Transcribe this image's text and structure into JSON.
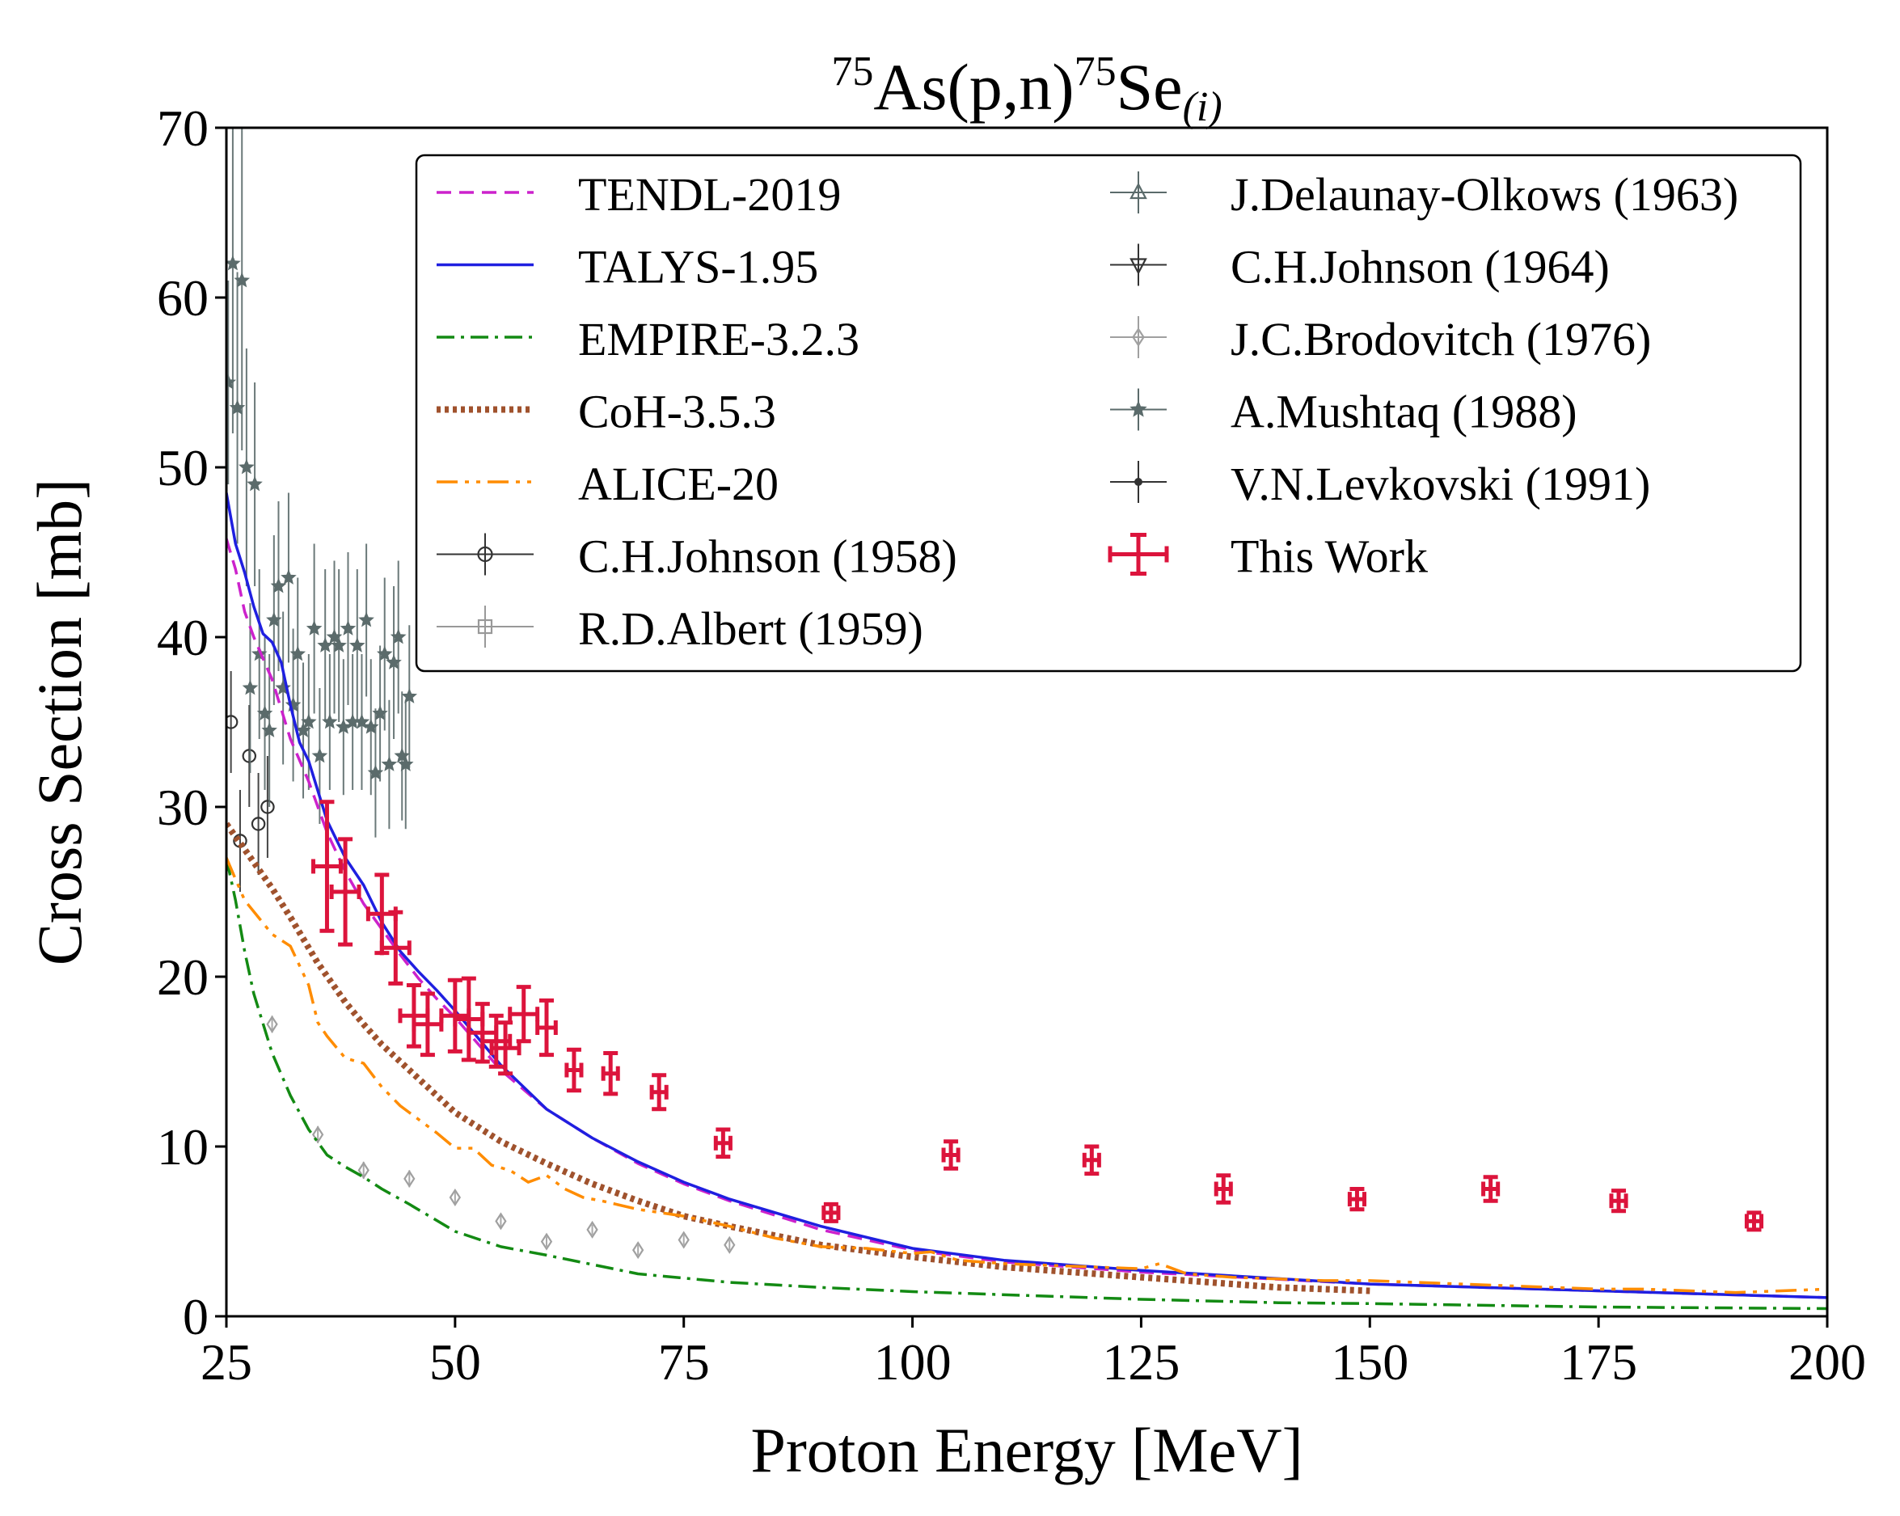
{
  "chart_data": {
    "type": "scatter",
    "title": {
      "sup1": "75",
      "mid1": "As(p,n)",
      "sup2": "75",
      "mid2": "Se",
      "sub": "(i)"
    },
    "xlabel": "Proton Energy [MeV]",
    "ylabel": "Cross Section [mb]",
    "xlim": [
      25,
      200
    ],
    "ylim": [
      0,
      70
    ],
    "xticks": [
      25,
      50,
      75,
      100,
      125,
      150,
      175,
      200
    ],
    "yticks": [
      0,
      10,
      20,
      30,
      40,
      50,
      60,
      70
    ],
    "legend_position": "top-right",
    "model_curves": [
      {
        "name": "TENDL-2019",
        "color": "#cc22cc",
        "dash": "dashed",
        "x": [
          25,
          26,
          27,
          28,
          30,
          32,
          34,
          36,
          38,
          40,
          42,
          44,
          46,
          48,
          50,
          55,
          60,
          65,
          70,
          75,
          80,
          90,
          100,
          110,
          125,
          150,
          175,
          200
        ],
        "y": [
          45.8,
          44,
          41.5,
          40,
          37.5,
          34,
          31.5,
          28.5,
          26.2,
          24.3,
          22.8,
          21.3,
          19.9,
          18.7,
          17.6,
          14.5,
          12.2,
          10.5,
          9,
          7.8,
          6.8,
          5.1,
          3.9,
          3.2,
          2.6,
          1.9,
          1.5,
          1.1
        ]
      },
      {
        "name": "TALYS-1.95",
        "color": "#1f1fe0",
        "dash": "solid",
        "x": [
          25,
          26,
          27,
          28,
          29,
          30,
          31,
          32,
          33,
          34,
          36,
          38,
          40,
          42,
          44,
          46,
          48,
          50,
          55,
          60,
          65,
          70,
          75,
          80,
          90,
          100,
          110,
          125,
          150,
          175,
          200
        ],
        "y": [
          48.5,
          45.5,
          43.8,
          41.8,
          40.2,
          39.7,
          38.5,
          36,
          33.8,
          32.7,
          29.2,
          27,
          25.4,
          23.2,
          21.5,
          20.3,
          19.2,
          18,
          14.8,
          12.2,
          10.5,
          9.1,
          7.9,
          6.9,
          5.3,
          4.0,
          3.3,
          2.7,
          1.9,
          1.5,
          1.1
        ]
      },
      {
        "name": "EMPIRE-3.2.3",
        "color": "#138a13",
        "dash": "dashdot",
        "x": [
          25,
          26,
          27,
          28,
          30,
          32,
          34,
          36,
          38,
          40,
          42,
          45,
          50,
          55,
          60,
          70,
          80,
          90,
          100,
          125,
          140,
          150,
          175,
          200
        ],
        "y": [
          27,
          24.5,
          21.5,
          19,
          15.5,
          13,
          11,
          9.5,
          8.8,
          8.2,
          7.5,
          6.6,
          5,
          4.1,
          3.6,
          2.5,
          2.0,
          1.7,
          1.45,
          1.0,
          0.8,
          0.75,
          0.55,
          0.45
        ]
      },
      {
        "name": "CoH-3.5.3",
        "color": "#a0522d",
        "dash": "dotted",
        "x": [
          25,
          27,
          30,
          32,
          35,
          38,
          40,
          42,
          45,
          48,
          50,
          55,
          60,
          65,
          70,
          75,
          80,
          90,
          100,
          110,
          125,
          140,
          150
        ],
        "y": [
          29,
          27.5,
          25.2,
          23.5,
          20.8,
          18.5,
          17.2,
          16,
          14.5,
          13,
          12,
          10.3,
          9,
          7.8,
          6.8,
          5.9,
          5.3,
          4.2,
          3.5,
          2.9,
          2.3,
          1.7,
          1.5
        ]
      },
      {
        "name": "ALICE-20",
        "color": "#ff8c00",
        "dash": "dashdotdot",
        "x": [
          25,
          27,
          30,
          32,
          34,
          35,
          36,
          38,
          40,
          42,
          44,
          46,
          48,
          50,
          52,
          54,
          56,
          58,
          60,
          62,
          64,
          66,
          70,
          75,
          80,
          85,
          90,
          95,
          100,
          102,
          105,
          110,
          115,
          120,
          125,
          127,
          130,
          135,
          140,
          145,
          150,
          155,
          160,
          165,
          170,
          175,
          180,
          185,
          190,
          195,
          200
        ],
        "y": [
          27,
          24.5,
          22.5,
          21.8,
          19.5,
          17.3,
          16.5,
          15.2,
          14.9,
          13.5,
          12.4,
          11.6,
          10.8,
          9.9,
          9.9,
          8.9,
          8.6,
          7.9,
          8.3,
          7.5,
          7,
          6.8,
          6.3,
          5.9,
          5.3,
          4.6,
          4.1,
          4.0,
          3.7,
          3.8,
          3.3,
          3.1,
          3.0,
          2.9,
          2.8,
          3.1,
          2.5,
          2.3,
          2.2,
          2.1,
          2.1,
          2.0,
          1.9,
          1.8,
          1.7,
          1.6,
          1.6,
          1.5,
          1.4,
          1.5,
          1.6
        ]
      }
    ],
    "experimental": [
      {
        "name": "C.H.Johnson (1958)",
        "color": "#333333",
        "marker": "circle",
        "x": [
          25.5,
          26.5,
          27.5,
          28.5,
          29.5
        ],
        "y": [
          35,
          28,
          33,
          29,
          30
        ],
        "yerr": [
          3,
          3,
          3,
          3,
          3
        ]
      },
      {
        "name": "R.D.Albert (1959)",
        "color": "#999999",
        "marker": "square",
        "x": [],
        "y": [],
        "yerr": []
      },
      {
        "name": "J.Delaunay-Olkows (1963)",
        "color": "#5b6b6b",
        "marker": "triangle-up",
        "x": [],
        "y": [],
        "yerr": []
      },
      {
        "name": "C.H.Johnson (1964)",
        "color": "#333333",
        "marker": "triangle-down",
        "x": [],
        "y": [],
        "yerr": []
      },
      {
        "name": "J.C.Brodovitch (1976)",
        "color": "#a0a0a0",
        "marker": "diamond",
        "x": [
          30,
          35,
          40,
          45,
          50,
          55,
          60,
          65,
          70,
          75,
          80
        ],
        "y": [
          17.2,
          10.7,
          8.6,
          8.1,
          7.0,
          5.6,
          4.4,
          5.1,
          3.9,
          4.5,
          4.2
        ],
        "yerr": [
          0.5,
          0.5,
          0.5,
          0.5,
          0.4,
          0.4,
          0.3,
          0.3,
          0.3,
          0.3,
          0.3
        ]
      },
      {
        "name": "A.Mushtaq (1988)",
        "color": "#5b6b6b",
        "marker": "star",
        "x": [
          25.2,
          25.7,
          26.2,
          26.7,
          27.2,
          27.6,
          28.1,
          28.6,
          29.2,
          29.7,
          30.2,
          30.7,
          31.2,
          31.8,
          32.3,
          32.8,
          33.4,
          34.0,
          34.6,
          35.2,
          35.8,
          36.3,
          36.8,
          37.3,
          37.8,
          38.3,
          38.8,
          39.3,
          39.8,
          40.3,
          40.8,
          41.3,
          41.8,
          42.3,
          42.8,
          43.3,
          43.8,
          44.2,
          44.6,
          45.0
        ],
        "y": [
          55,
          62,
          53.5,
          61,
          50,
          37,
          49,
          39,
          35.5,
          34.5,
          41,
          43,
          37,
          43.5,
          36,
          39,
          34.5,
          35,
          40.5,
          33,
          39.5,
          35,
          40,
          39.5,
          34.7,
          40.5,
          35,
          39.5,
          35,
          41,
          34.7,
          32,
          35.5,
          39,
          32.5,
          38.5,
          40,
          33,
          32.5,
          36.5
        ],
        "yerr": [
          6,
          10,
          8,
          10,
          7,
          5,
          6,
          5,
          4.5,
          4.5,
          5,
          5,
          4.5,
          5,
          4.5,
          4.5,
          4,
          4,
          5,
          4,
          4.5,
          4,
          4.5,
          4.5,
          4,
          4.5,
          4,
          4.5,
          4,
          4.5,
          4,
          3.8,
          4,
          4.5,
          3.8,
          4.5,
          4.5,
          3.8,
          3.8,
          4.2
        ]
      },
      {
        "name": "V.N.Levkovski (1991)",
        "color": "#333333",
        "marker": "point",
        "x": [],
        "y": [],
        "yerr": []
      }
    ],
    "this_work": {
      "name": "This Work",
      "color": "#dc143c",
      "points": [
        {
          "x": 36,
          "y": 26.5,
          "xerr": 1.5,
          "yerr": 3.8
        },
        {
          "x": 38,
          "y": 25,
          "xerr": 1.5,
          "yerr": 3.1
        },
        {
          "x": 42,
          "y": 23.7,
          "xerr": 1.5,
          "yerr": 2.3
        },
        {
          "x": 43.5,
          "y": 21.7,
          "xerr": 1.5,
          "yerr": 2.1
        },
        {
          "x": 45.5,
          "y": 17.7,
          "xerr": 1.5,
          "yerr": 1.8
        },
        {
          "x": 47,
          "y": 17.2,
          "xerr": 1.5,
          "yerr": 1.8
        },
        {
          "x": 50,
          "y": 17.7,
          "xerr": 1.5,
          "yerr": 2.1
        },
        {
          "x": 51.5,
          "y": 17.5,
          "xerr": 1.5,
          "yerr": 2.4
        },
        {
          "x": 53,
          "y": 16.7,
          "xerr": 1.5,
          "yerr": 1.7
        },
        {
          "x": 54.5,
          "y": 16.2,
          "xerr": 1.5,
          "yerr": 1.5
        },
        {
          "x": 55.5,
          "y": 15.8,
          "xerr": 1.5,
          "yerr": 1.5
        },
        {
          "x": 57.5,
          "y": 17.8,
          "xerr": 1.5,
          "yerr": 1.6
        },
        {
          "x": 60,
          "y": 17,
          "xerr": 1.0,
          "yerr": 1.6
        },
        {
          "x": 63,
          "y": 14.5,
          "xerr": 0.8,
          "yerr": 1.2
        },
        {
          "x": 67,
          "y": 14.3,
          "xerr": 0.8,
          "yerr": 1.2
        },
        {
          "x": 72.3,
          "y": 13.2,
          "xerr": 0.8,
          "yerr": 1.0
        },
        {
          "x": 79.3,
          "y": 10.2,
          "xerr": 0.8,
          "yerr": 0.8
        },
        {
          "x": 91.1,
          "y": 6.1,
          "xerr": 0.8,
          "yerr": 0.5
        },
        {
          "x": 104.2,
          "y": 9.5,
          "xerr": 0.8,
          "yerr": 0.8
        },
        {
          "x": 119.6,
          "y": 9.2,
          "xerr": 0.8,
          "yerr": 0.8
        },
        {
          "x": 134,
          "y": 7.5,
          "xerr": 0.8,
          "yerr": 0.8
        },
        {
          "x": 148.6,
          "y": 6.9,
          "xerr": 0.8,
          "yerr": 0.6
        },
        {
          "x": 163.2,
          "y": 7.5,
          "xerr": 0.8,
          "yerr": 0.7
        },
        {
          "x": 177.2,
          "y": 6.8,
          "xerr": 0.8,
          "yerr": 0.6
        },
        {
          "x": 192,
          "y": 5.6,
          "xerr": 0.8,
          "yerr": 0.5
        }
      ]
    }
  }
}
